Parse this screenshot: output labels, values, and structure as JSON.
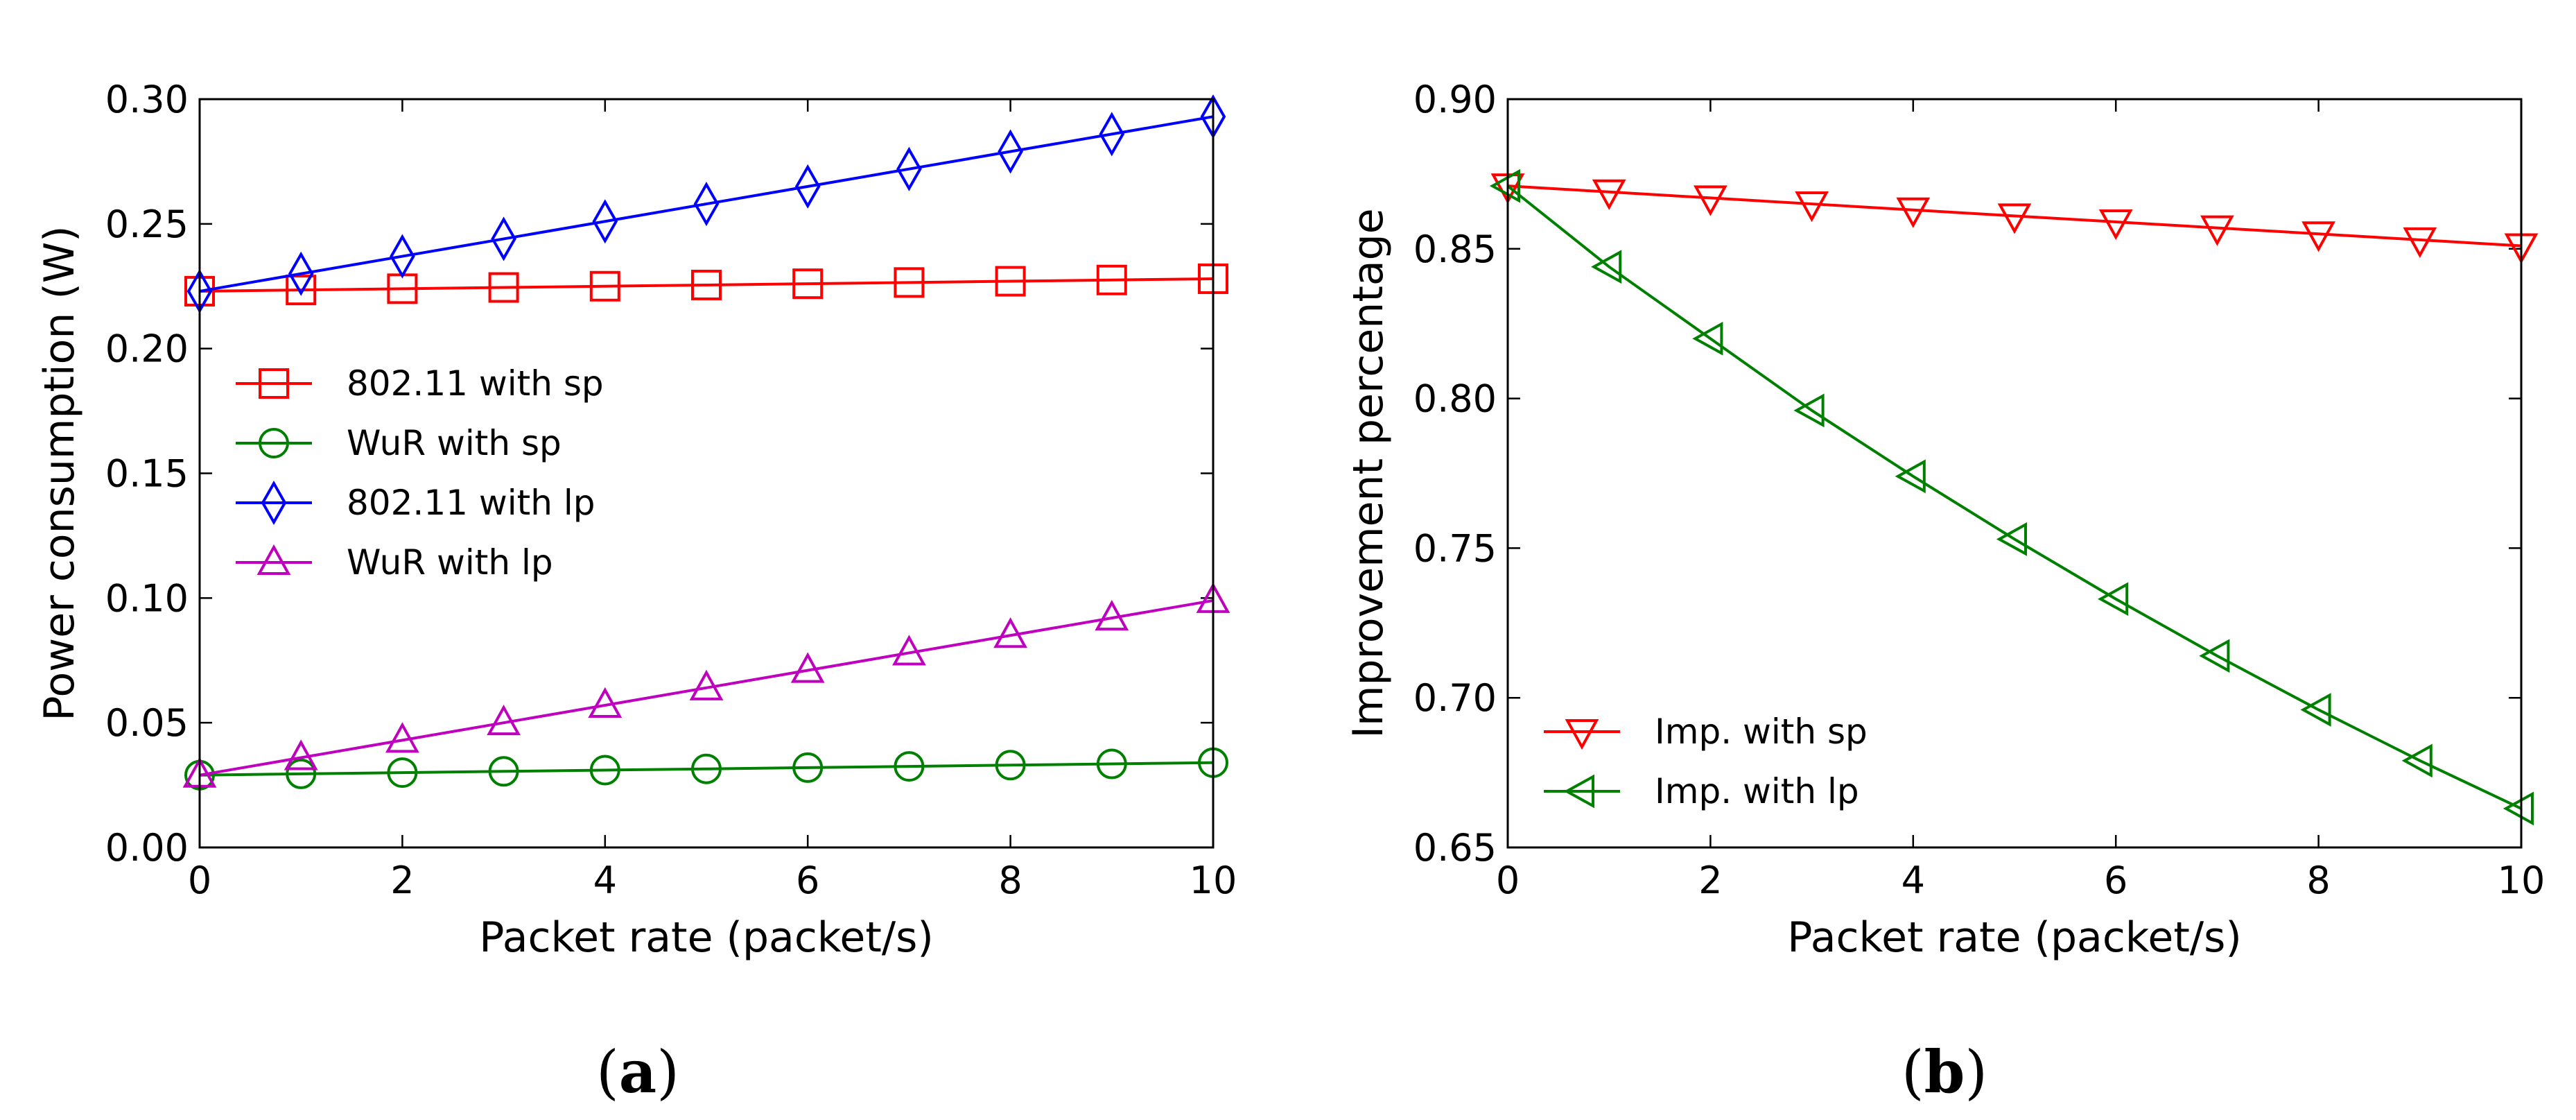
{
  "chart_data": [
    {
      "type": "line",
      "panel_label": {
        "open": "(",
        "letter": "a",
        "close": ")"
      },
      "xlabel": "Packet rate (packet/s)",
      "ylabel": "Power consumption (W)",
      "xlim": [
        0,
        10
      ],
      "ylim": [
        0.0,
        0.3
      ],
      "xticks": [
        0,
        2,
        4,
        6,
        8,
        10
      ],
      "xtick_labels": [
        "0",
        "2",
        "4",
        "6",
        "8",
        "10"
      ],
      "yticks": [
        0.0,
        0.05,
        0.1,
        0.15,
        0.2,
        0.25,
        0.3
      ],
      "ytick_labels": [
        "0.00",
        "0.05",
        "0.10",
        "0.15",
        "0.20",
        "0.25",
        "0.30"
      ],
      "grid": false,
      "legend_position": "center-left",
      "x": [
        0,
        1,
        2,
        3,
        4,
        5,
        6,
        7,
        8,
        9,
        10
      ],
      "series": [
        {
          "name": "802.11 with sp",
          "color": "#ff0000",
          "marker": "square",
          "values": [
            0.223,
            0.2235,
            0.224,
            0.2245,
            0.225,
            0.2255,
            0.226,
            0.2265,
            0.227,
            0.2275,
            0.228
          ]
        },
        {
          "name": "WuR with sp",
          "color": "#008000",
          "marker": "circle",
          "values": [
            0.029,
            0.0295,
            0.03,
            0.0305,
            0.031,
            0.0315,
            0.032,
            0.0325,
            0.033,
            0.0335,
            0.034
          ]
        },
        {
          "name": "802.11 with lp",
          "color": "#0000ff",
          "marker": "thin-diamond",
          "values": [
            0.223,
            0.23,
            0.237,
            0.244,
            0.251,
            0.258,
            0.265,
            0.272,
            0.279,
            0.286,
            0.293
          ]
        },
        {
          "name": "WuR with lp",
          "color": "#bf00bf",
          "marker": "triangle-up",
          "values": [
            0.029,
            0.036,
            0.043,
            0.05,
            0.057,
            0.064,
            0.071,
            0.078,
            0.085,
            0.092,
            0.099
          ]
        }
      ]
    },
    {
      "type": "line",
      "panel_label": {
        "open": "(",
        "letter": "b",
        "close": ")"
      },
      "xlabel": "Packet rate (packet/s)",
      "ylabel": "Improvement percentage",
      "xlim": [
        0,
        10
      ],
      "ylim": [
        0.65,
        0.9
      ],
      "xticks": [
        0,
        2,
        4,
        6,
        8,
        10
      ],
      "xtick_labels": [
        "0",
        "2",
        "4",
        "6",
        "8",
        "10"
      ],
      "yticks": [
        0.65,
        0.7,
        0.75,
        0.8,
        0.85,
        0.9
      ],
      "ytick_labels": [
        "0.65",
        "0.70",
        "0.75",
        "0.80",
        "0.85",
        "0.90"
      ],
      "grid": false,
      "legend_position": "lower-left",
      "x": [
        0,
        1,
        2,
        3,
        4,
        5,
        6,
        7,
        8,
        9,
        10
      ],
      "series": [
        {
          "name": "Imp. with sp",
          "color": "#ff0000",
          "marker": "triangle-down",
          "values": [
            0.871,
            0.869,
            0.867,
            0.865,
            0.863,
            0.861,
            0.859,
            0.857,
            0.855,
            0.853,
            0.851
          ]
        },
        {
          "name": "Imp. with lp",
          "color": "#008000",
          "marker": "triangle-left",
          "values": [
            0.871,
            0.844,
            0.82,
            0.796,
            0.774,
            0.753,
            0.733,
            0.714,
            0.696,
            0.679,
            0.663
          ]
        }
      ]
    }
  ]
}
